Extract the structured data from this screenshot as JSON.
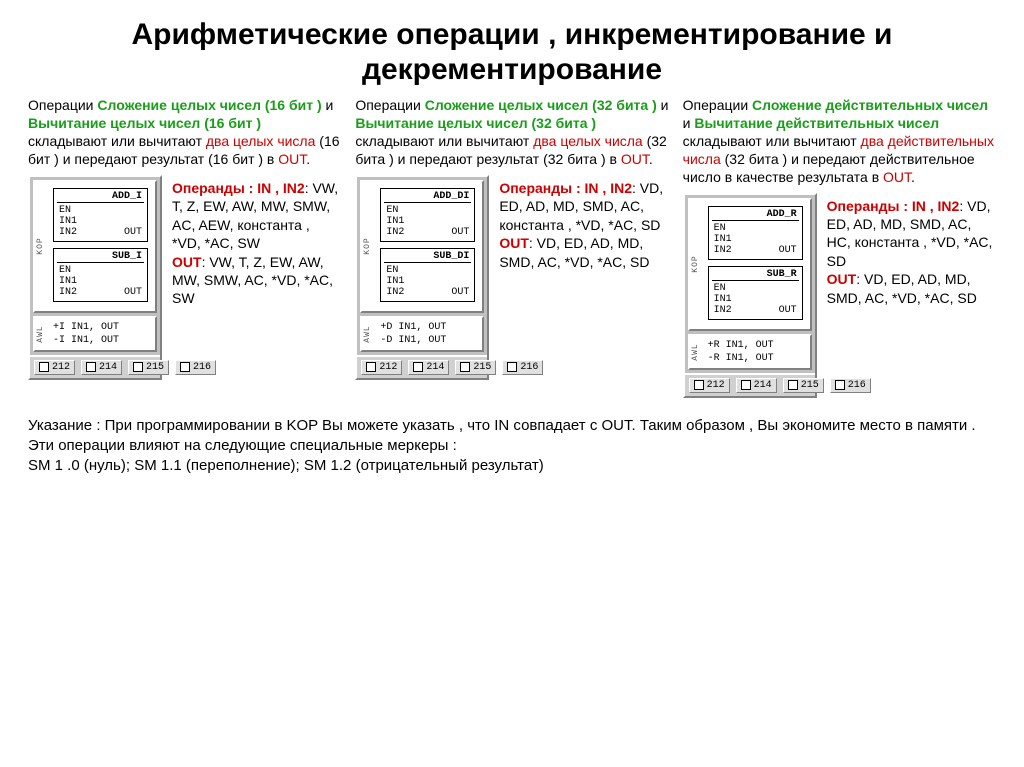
{
  "title": "Арифметические операции , инкрементирование и декрементирование",
  "columns": [
    {
      "desc": {
        "pre": "Операции ",
        "op1": "Сложение целых чисел (16 бит )",
        "mid1": " и ",
        "op2": "Вычитание целых чисел (16 бит )",
        "mid2": " складывают или вычитают ",
        "red": "два целых числа",
        "post": " (16 бит ) и передают результат (16 бит ) в ",
        "out": "OUT",
        "tail": "."
      },
      "panel": {
        "kop_label": "KOP",
        "blocks": [
          {
            "name": "ADD_I",
            "ports": [
              [
                "EN",
                ""
              ],
              [
                "IN1",
                ""
              ],
              [
                "IN2",
                "OUT"
              ]
            ]
          },
          {
            "name": "SUB_I",
            "ports": [
              [
                "EN",
                ""
              ],
              [
                "IN1",
                ""
              ],
              [
                "IN2",
                "OUT"
              ]
            ]
          }
        ],
        "awl_label": "AWL",
        "awl": [
          "+I  IN1, OUT",
          "-I  IN1, OUT"
        ],
        "chips": [
          "212",
          "214",
          "215",
          "216"
        ]
      },
      "operands": {
        "in_label": "Операнды :",
        "in_keys": "IN , IN2",
        "in_vals": ": VW, T, Z, EW, AW, MW, SMW, AC, AEW, константа , *VD, *AC, SW",
        "out_key": "OUT",
        "out_vals": ": VW, T, Z, EW, AW, MW, SMW, AC, *VD, *AC, SW"
      }
    },
    {
      "desc": {
        "pre": "Операции ",
        "op1": "Сложение целых чисел (32 бита )",
        "mid1": " и ",
        "op2": "Вычитание целых чисел (32 бита )",
        "mid2": " складывают или вычитают ",
        "red": "два целых числа",
        "post": " (32 бита ) и передают результат (32 бита ) в ",
        "out": "OUT",
        "tail": "."
      },
      "panel": {
        "kop_label": "KOP",
        "blocks": [
          {
            "name": "ADD_DI",
            "ports": [
              [
                "EN",
                ""
              ],
              [
                "IN1",
                ""
              ],
              [
                "IN2",
                "OUT"
              ]
            ]
          },
          {
            "name": "SUB_DI",
            "ports": [
              [
                "EN",
                ""
              ],
              [
                "IN1",
                ""
              ],
              [
                "IN2",
                "OUT"
              ]
            ]
          }
        ],
        "awl_label": "AWL",
        "awl": [
          "+D  IN1, OUT",
          "-D  IN1, OUT"
        ],
        "chips": [
          "212",
          "214",
          "215",
          "216"
        ]
      },
      "operands": {
        "in_label": "Операнды :",
        "in_keys": "IN , IN2",
        "in_vals": ": VD, ED, AD, MD, SMD, AC, константа , *VD, *AC, SD",
        "out_key": "OUT",
        "out_vals": ": VD, ED, AD, MD, SMD, AC, *VD, *AC, SD"
      }
    },
    {
      "desc": {
        "pre": "Операции ",
        "op1": "Сложение действительных чисел",
        "mid1": "  и ",
        "op2": "Вычитание действительных чисел",
        "mid2": " складывают или вычитают ",
        "red": "два действительных числа",
        "post": " (32 бита ) и передают действительное число в качестве результата в ",
        "out": "OUT",
        "tail": "."
      },
      "panel": {
        "kop_label": "KOP",
        "blocks": [
          {
            "name": "ADD_R",
            "ports": [
              [
                "EN",
                ""
              ],
              [
                "IN1",
                ""
              ],
              [
                "IN2",
                "OUT"
              ]
            ]
          },
          {
            "name": "SUB_R",
            "ports": [
              [
                "EN",
                ""
              ],
              [
                "IN1",
                ""
              ],
              [
                "IN2",
                "OUT"
              ]
            ]
          }
        ],
        "awl_label": "AWL",
        "awl": [
          "+R  IN1, OUT",
          "-R  IN1, OUT"
        ],
        "chips": [
          "212",
          "214",
          "215",
          "216"
        ]
      },
      "operands": {
        "in_label": "Операнды :",
        "in_keys": "IN , IN2",
        "in_vals": ": VD, ED, AD, MD, SMD, AC, HC, константа , *VD, *AC, SD",
        "out_key": "OUT",
        "out_vals": ": VD, ED, AD, MD, SMD, AC, *VD, *AC, SD"
      }
    }
  ],
  "note": {
    "l1": "Указание : При программировании в KOP Вы можете указать , что IN совпадает с OUT. Таким образом , Вы экономите место в памяти .",
    "l2": "Эти операции влияют на следующие специальные меркеры :",
    "l3": "SM 1 .0 (нуль); SM 1.1 (переполнение); SM 1.2 (отрицательный результат)"
  }
}
